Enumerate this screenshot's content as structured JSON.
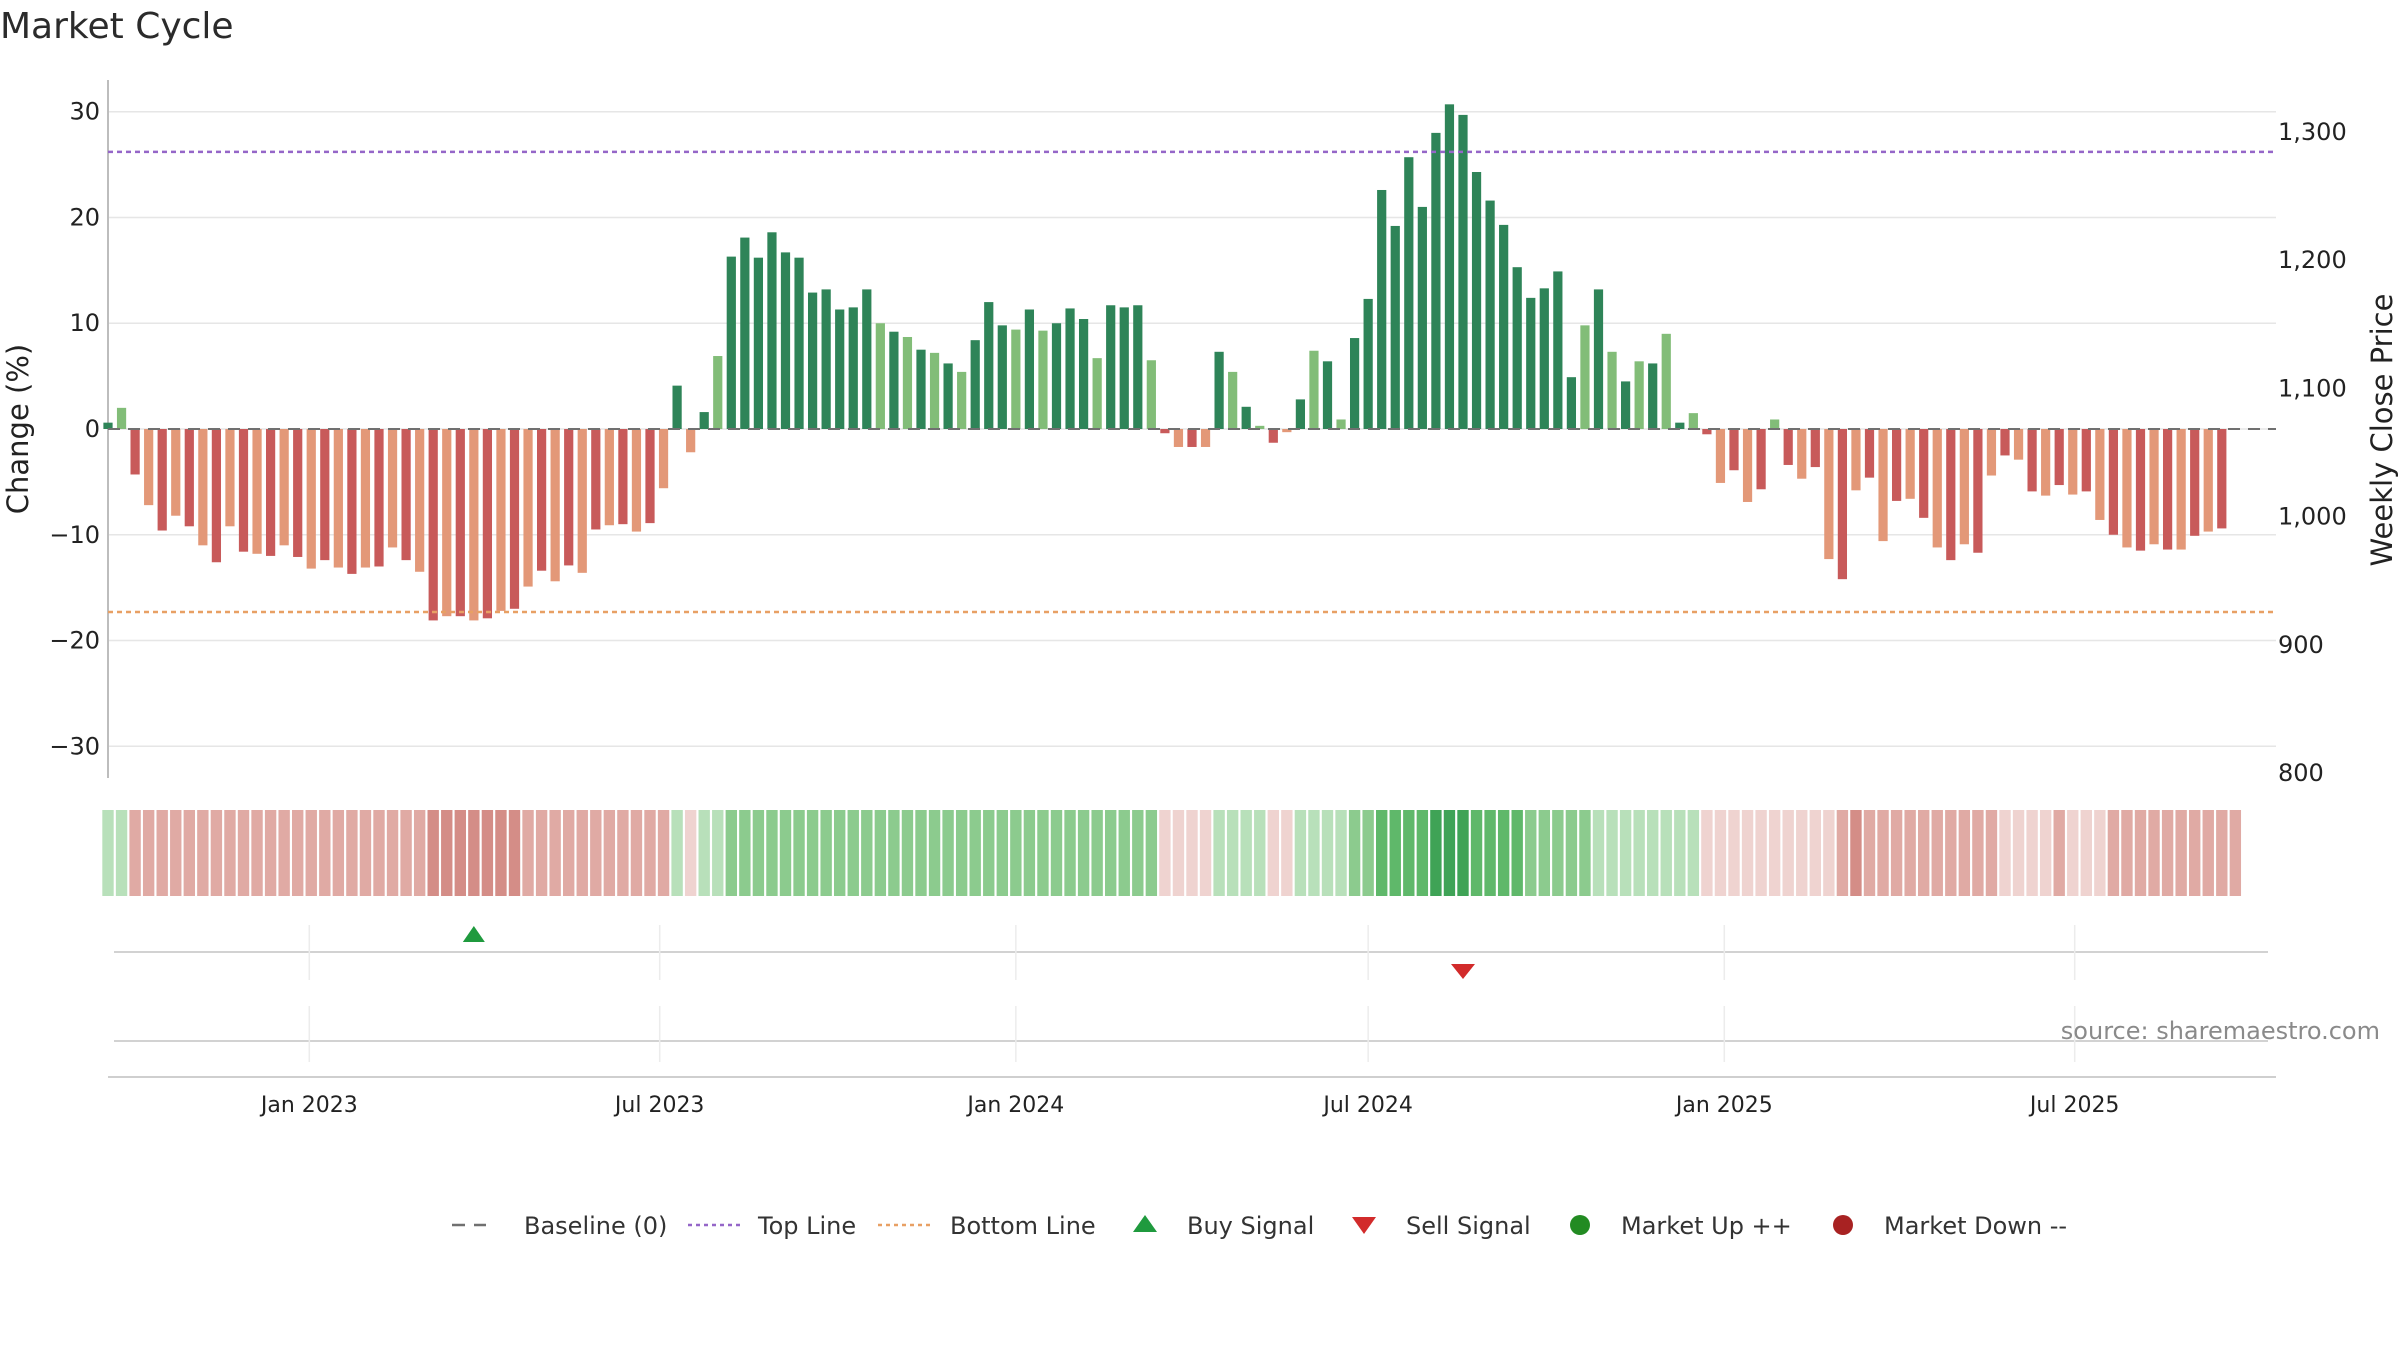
{
  "chart_data": {
    "type": "bar",
    "title": "Market Cycle",
    "ylabel_left": "Change (%)",
    "ylabel_right": "Weekly Close Price",
    "ylim_left": [
      -33,
      33
    ],
    "yticks_left": [
      30,
      20,
      10,
      0,
      -10,
      -20,
      -30
    ],
    "ytick_labels_left": [
      "30",
      "20",
      "10",
      "0",
      "−10",
      "−20",
      "−30"
    ],
    "ylim_right": [
      800,
      1300
    ],
    "yticks_right": [
      1300,
      1200,
      1100,
      1000,
      900,
      800
    ],
    "ytick_labels_right": [
      "1,300",
      "1,200",
      "1,100",
      "1,000",
      "900",
      "800"
    ],
    "x_date_range": [
      "2022-09-19",
      "2025-10-13"
    ],
    "xticks": [
      "2023-01-01",
      "2023-07-01",
      "2024-01-01",
      "2024-07-01",
      "2025-01-01",
      "2025-07-01"
    ],
    "xtick_labels": [
      "Jan 2023",
      "Jul 2023",
      "Jan 2024",
      "Jul 2024",
      "Jan 2025",
      "Jul 2025"
    ],
    "first_week": "2022-09-19",
    "baseline": 0,
    "top_line": 26.2,
    "bottom_line": -17.3,
    "weekly_change": [
      0.6,
      2.0,
      -4.3,
      -7.2,
      -9.6,
      -8.2,
      -9.2,
      -11.0,
      -12.6,
      -9.2,
      -11.6,
      -11.8,
      -12.0,
      -11.0,
      -12.1,
      -13.2,
      -12.4,
      -13.1,
      -13.7,
      -13.1,
      -13.0,
      -11.2,
      -12.4,
      -13.5,
      -18.1,
      -17.7,
      -17.7,
      -18.1,
      -17.9,
      -17.2,
      -17.0,
      -14.9,
      -13.4,
      -14.4,
      -12.9,
      -13.6,
      -9.5,
      -9.1,
      -9.0,
      -9.7,
      -8.9,
      -5.6,
      4.1,
      -2.2,
      1.6,
      6.9,
      16.3,
      18.1,
      16.2,
      18.6,
      16.7,
      16.2,
      12.9,
      13.2,
      11.3,
      11.5,
      13.2,
      10.0,
      9.2,
      8.7,
      7.5,
      7.2,
      6.2,
      5.4,
      8.4,
      12.0,
      9.8,
      9.4,
      11.3,
      9.3,
      10.0,
      11.4,
      10.4,
      6.7,
      11.7,
      11.5,
      11.7,
      6.5,
      -0.4,
      -1.7,
      -1.7,
      -1.7,
      7.3,
      5.4,
      2.1,
      0.3,
      -1.3,
      -0.3,
      2.8,
      7.4,
      6.4,
      0.9,
      8.6,
      12.3,
      22.6,
      19.2,
      25.7,
      21.0,
      28.0,
      30.7,
      29.7,
      24.3,
      21.6,
      19.3,
      15.3,
      12.4,
      13.3,
      14.9,
      4.9,
      9.8,
      13.2,
      7.3,
      4.5,
      6.4,
      6.2,
      9.0,
      0.6,
      1.5,
      -0.5,
      -5.1,
      -3.9,
      -6.9,
      -5.7,
      0.9,
      -3.4,
      -4.7,
      -3.6,
      -12.3,
      -14.2,
      -5.8,
      -4.6,
      -10.6,
      -6.8,
      -6.6,
      -8.4,
      -11.2,
      -12.4,
      -10.9,
      -11.7,
      -4.4,
      -2.5,
      -2.9,
      -5.9,
      -6.3,
      -5.3,
      -6.2,
      -5.9,
      -8.6,
      -10.0,
      -11.2,
      -11.5,
      -10.9,
      -11.4,
      -11.4,
      -10.1,
      -9.7,
      -9.4
    ],
    "regime_shades": [
      2,
      2,
      -2,
      -2,
      -2,
      -2,
      -2,
      -2,
      -2,
      -2,
      -2,
      -2,
      -2,
      -2,
      -2,
      -2,
      -2,
      -2,
      -2,
      -2,
      -2,
      -2,
      -2,
      -2,
      -3,
      -3,
      -3,
      -3,
      -3,
      -3,
      -3,
      -2,
      -2,
      -2,
      -2,
      -2,
      -2,
      -2,
      -2,
      -2,
      -2,
      -2,
      2,
      -1,
      2,
      2,
      3,
      3,
      3,
      3,
      3,
      3,
      3,
      3,
      3,
      3,
      3,
      3,
      3,
      3,
      3,
      3,
      3,
      3,
      3,
      3,
      3,
      3,
      3,
      3,
      3,
      3,
      3,
      3,
      3,
      3,
      3,
      3,
      -1,
      -1,
      -1,
      -1,
      2,
      2,
      2,
      2,
      -1,
      -1,
      2,
      2,
      2,
      2,
      3,
      3,
      4,
      4,
      4,
      4,
      5,
      5,
      5,
      4,
      4,
      4,
      4,
      3,
      3,
      3,
      3,
      3,
      2,
      2,
      2,
      2,
      2,
      2,
      2,
      2,
      -1,
      -1,
      -1,
      -1,
      -1,
      -1,
      -1,
      -1,
      -1,
      -1,
      -2,
      -3,
      -2,
      -2,
      -2,
      -2,
      -2,
      -2,
      -2,
      -2,
      -2,
      -2,
      -1,
      -1,
      -1,
      -1,
      -2,
      -1,
      -1,
      -1,
      -2,
      -2,
      -2,
      -2,
      -2,
      -2,
      -2,
      -2,
      -2,
      -2
    ],
    "buy_signals": [
      "2023-03-27"
    ],
    "sell_signals": [
      "2024-08-19"
    ],
    "legend": [
      "Baseline (0)",
      "Top Line",
      "Bottom Line",
      "Buy Signal",
      "Sell Signal",
      "Market Up ++",
      "Market Down --"
    ],
    "legend_position": "bottom-center",
    "grid": true,
    "source": "source: sharemaestro.com"
  },
  "colors": {
    "up_dark": "#2e8458",
    "up_light": "#82bd78",
    "down_dark": "#c85a5a",
    "down_light": "#e39878",
    "top_line": "#9566c8",
    "bottom_line": "#e8a064",
    "baseline": "#707070",
    "buy": "#1f9a3e",
    "sell": "#d22b2b",
    "market_up": "#228b22",
    "market_down": "#a82222"
  }
}
